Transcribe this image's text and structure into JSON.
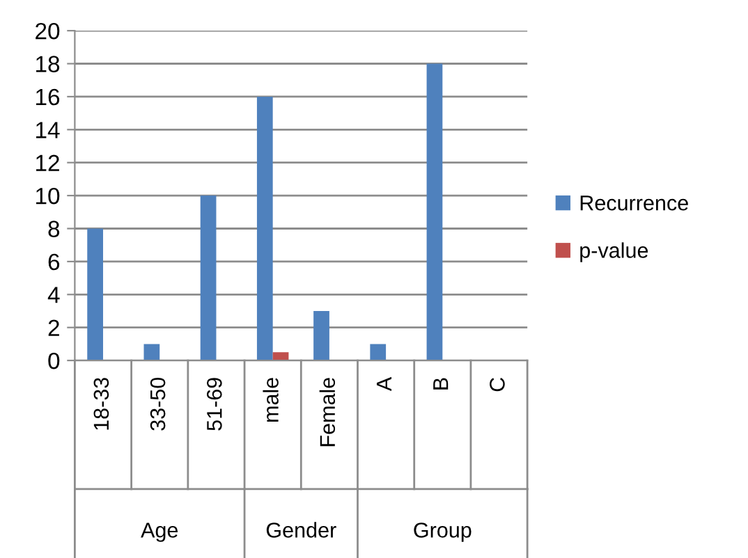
{
  "chart_data": {
    "type": "bar",
    "categories": [
      "18-33",
      "33-50",
      "51-69",
      "male",
      "Female",
      "A",
      "B",
      "C"
    ],
    "series": [
      {
        "name": "Recurrence",
        "color": "#4f81bd",
        "values": [
          8,
          1,
          10,
          16,
          3,
          1,
          18,
          0
        ]
      },
      {
        "name": "p-value",
        "color": "#c0504d",
        "values": [
          null,
          null,
          null,
          0.5,
          null,
          null,
          null,
          null
        ]
      }
    ],
    "annotations": [
      "Age",
      "Gender",
      "Group"
    ],
    "ylim": [
      0,
      20
    ],
    "yticks": [
      0,
      2,
      4,
      6,
      8,
      10,
      12,
      14,
      16,
      18,
      20
    ],
    "grid": "y",
    "legend": "right"
  }
}
